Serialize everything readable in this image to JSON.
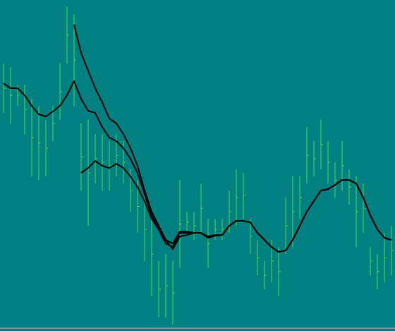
{
  "chart_data": {
    "type": "ohlc",
    "background": "#008080",
    "bar_color": "#4fd64f",
    "ylim": [
      0,
      469
    ],
    "high": [
      379,
      374,
      349,
      349,
      329,
      319,
      299,
      319,
      379,
      459,
      449,
      294,
      299,
      279,
      279,
      269,
      279,
      269,
      229,
      214,
      189,
      169,
      99,
      109,
      99,
      214,
      169,
      169,
      209,
      159,
      159,
      159,
      199,
      229,
      224,
      159,
      129,
      99,
      129,
      119,
      189,
      219,
      219,
      289,
      269,
      299,
      269,
      239,
      269,
      229,
      219,
      209,
      119,
      109,
      139,
      149
    ],
    "low": [
      309,
      294,
      319,
      279,
      219,
      214,
      219,
      269,
      299,
      379,
      319,
      199,
      149,
      209,
      199,
      199,
      219,
      209,
      169,
      139,
      99,
      49,
      19,
      19,
      9,
      89,
      139,
      129,
      139,
      89,
      129,
      129,
      139,
      149,
      159,
      109,
      79,
      59,
      69,
      49,
      109,
      119,
      159,
      209,
      219,
      229,
      209,
      189,
      199,
      179,
      119,
      139,
      79,
      59,
      69,
      79
    ],
    "series": [
      {
        "color": "#000000",
        "values": [
          351,
          344,
          344,
          334,
          319,
          307,
          304,
          311,
          319,
          334,
          354,
          329,
          312,
          309,
          289,
          274,
          269,
          259,
          244,
          224,
          194,
          164,
          144,
          124,
          119,
          139,
          139,
          139,
          139,
          134,
          136,
          136,
          149,
          156,
          156,
          154,
          139,
          129,
          119,
          112,
          114,
          129,
          149,
          169,
          184,
          199,
          201,
          207,
          214,
          214,
          209,
          189,
          164,
          144,
          132,
          129
        ]
      },
      {
        "color": "#000000",
        "values": [
          null,
          null,
          null,
          null,
          null,
          null,
          null,
          null,
          null,
          null,
          434,
          394,
          369,
          344,
          324,
          301,
          294,
          279,
          259,
          234,
          199,
          169,
          149,
          129,
          124,
          141,
          141,
          139,
          139,
          132,
          135,
          136,
          149,
          156,
          156,
          154,
          139,
          129,
          119,
          112,
          114,
          129,
          149,
          169,
          184,
          199,
          201,
          207,
          214,
          214,
          209,
          189,
          164,
          144,
          132,
          129
        ]
      },
      {
        "color": "#000000",
        "values": [
          null,
          null,
          null,
          null,
          null,
          null,
          null,
          null,
          null,
          null,
          null,
          224,
          231,
          241,
          234,
          231,
          237,
          231,
          219,
          204,
          184,
          159,
          144,
          129,
          116,
          134,
          136,
          139,
          139,
          132,
          135,
          136,
          149,
          156,
          156,
          154,
          139,
          129,
          119,
          112,
          114,
          129,
          149,
          169,
          184,
          199,
          201,
          207,
          214,
          214,
          209,
          189,
          164,
          144,
          132,
          129
        ]
      }
    ]
  }
}
